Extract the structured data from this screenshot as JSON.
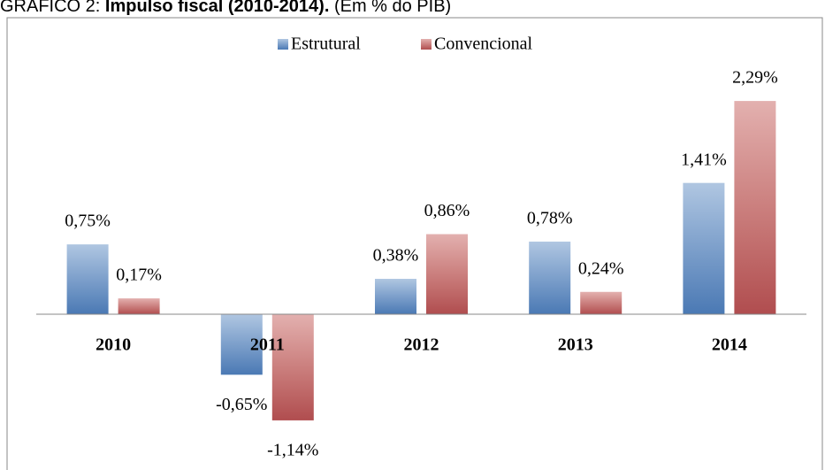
{
  "chart_data": {
    "type": "bar",
    "title_prefix": "GRÁFICO 2:",
    "title": "Impulso fiscal (2010-2014).",
    "title_suffix": "(Em % do PIB)",
    "categories": [
      "2010",
      "2011",
      "2012",
      "2013",
      "2014"
    ],
    "series": [
      {
        "name": "Estrutural",
        "color": "#4f81bd",
        "values": [
          0.75,
          -0.65,
          0.38,
          0.78,
          1.41
        ],
        "value_labels": [
          "0,75%",
          "-0,65%",
          "0,38%",
          "0,78%",
          "1,41%"
        ]
      },
      {
        "name": "Convencional",
        "color": "#c0504d",
        "values": [
          0.17,
          -1.14,
          0.86,
          0.24,
          2.29
        ],
        "value_labels": [
          "0,17%",
          "-1,14%",
          "0,86%",
          "0,24%",
          "2,29%"
        ]
      }
    ],
    "ylim": [
      -1.5,
      2.5
    ],
    "legend": "top"
  }
}
